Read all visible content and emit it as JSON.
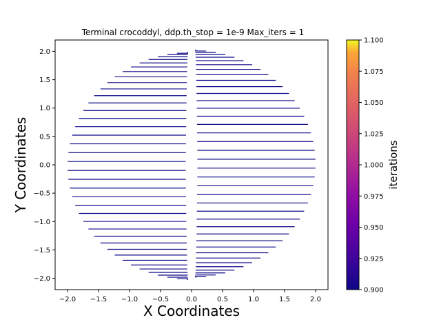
{
  "chart_data": {
    "type": "line",
    "title": "Terminal crocoddyl, ddp.th_stop = 1e-9 Max_iters = 1",
    "xlabel": "X Coordinates",
    "ylabel": "Y Coordinates",
    "xlim": [
      -2.2,
      2.2
    ],
    "ylim": [
      -2.2,
      2.2
    ],
    "xticks": [
      -2.0,
      -1.5,
      -1.0,
      -0.5,
      0.0,
      0.5,
      1.0,
      1.5,
      2.0
    ],
    "yticks": [
      -2.0,
      -1.5,
      -1.0,
      -0.5,
      0.0,
      0.5,
      1.0,
      1.5,
      2.0
    ],
    "xtick_labels": [
      "−2.0",
      "−1.5",
      "−1.0",
      "−0.5",
      "0.0",
      "0.5",
      "1.0",
      "1.5",
      "2.0"
    ],
    "ytick_labels": [
      "−2.0",
      "−1.5",
      "−1.0",
      "−0.5",
      "0.0",
      "0.5",
      "1.0",
      "1.5",
      "2.0"
    ],
    "grid": false,
    "line_color": "#0d0887",
    "description_of_data": "radial set of horizontal trajectories from points on a circle of radius 2 toward x=0, all colored by iterations = 1",
    "circle_radius": 2.0,
    "rows_per_side": 40,
    "colorbar": {
      "label": "iterations",
      "min": 0.9,
      "max": 1.1,
      "ticks": [
        0.9,
        0.925,
        0.95,
        0.975,
        1.0,
        1.025,
        1.05,
        1.075,
        1.1
      ],
      "tick_labels": [
        "0.900",
        "0.925",
        "0.950",
        "0.975",
        "1.000",
        "1.025",
        "1.050",
        "1.075",
        "1.100"
      ],
      "colormap": "plasma"
    }
  }
}
